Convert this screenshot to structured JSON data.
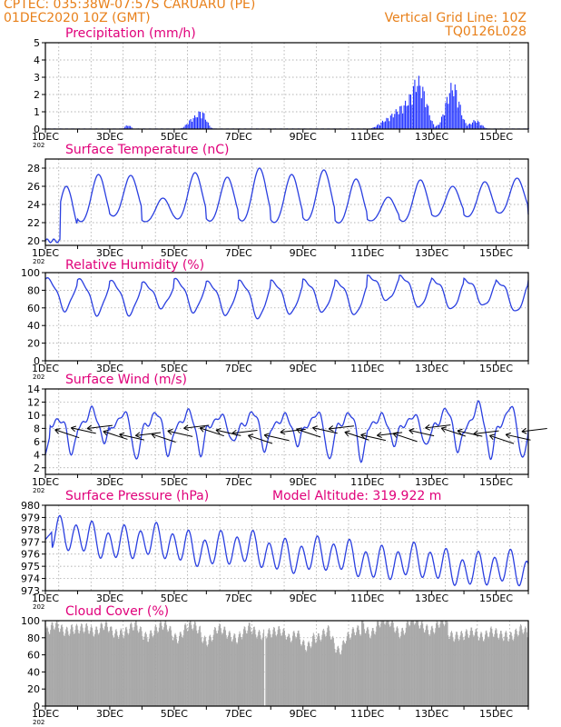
{
  "header": {
    "line1_left": "CPTEC:   035:38W-07:57S   CARUARU (PE)",
    "line2_left": "01DEC2020 10Z (GMT)",
    "line2_right": "Vertical Grid Line: 10Z",
    "line3_right": "TQ0126L028"
  },
  "colors": {
    "header": "#e8801a",
    "panel_title": "#e0007a",
    "series_line": "#2a3fe0",
    "precip_bars": "#1a2cff",
    "cloud_fill": "#a8a8a8",
    "wind_arrows": "#000000",
    "grid": "#9a9a9a"
  },
  "x_axis": {
    "start": "2020-12-01T00Z",
    "end": "2020-12-16T00Z",
    "labels": [
      "1DEC",
      "3DEC",
      "5DEC",
      "7DEC",
      "9DEC",
      "11DEC",
      "13DEC",
      "15DEC"
    ],
    "year_stub": "202"
  },
  "chart_data": [
    {
      "type": "bar",
      "title": "Precipitation (mm/h)",
      "ylim": [
        0,
        5
      ],
      "yticks": [
        0,
        1,
        2,
        3,
        4,
        5
      ],
      "grid": true,
      "events": [
        {
          "day": 2.55,
          "width": 0.2,
          "peak": 0.25
        },
        {
          "day": 4.55,
          "width": 0.35,
          "peak": 0.6
        },
        {
          "day": 4.85,
          "width": 0.3,
          "peak": 1.0
        },
        {
          "day": 10.45,
          "width": 0.4,
          "peak": 0.3
        },
        {
          "day": 10.85,
          "width": 0.5,
          "peak": 0.8
        },
        {
          "day": 11.25,
          "width": 0.5,
          "peak": 1.3
        },
        {
          "day": 11.55,
          "width": 0.35,
          "peak": 2.35
        },
        {
          "day": 11.8,
          "width": 0.3,
          "peak": 1.2
        },
        {
          "day": 12.55,
          "width": 0.4,
          "peak": 1.9
        },
        {
          "day": 12.75,
          "width": 0.35,
          "peak": 1.4
        },
        {
          "day": 13.35,
          "width": 0.35,
          "peak": 0.55
        },
        {
          "day": 15.9,
          "width": 0.2,
          "peak": 0.35
        }
      ]
    },
    {
      "type": "line",
      "title": "Surface Temperature (nC)",
      "ylim": [
        19.5,
        29
      ],
      "yticks": [
        20,
        22,
        24,
        26,
        28
      ],
      "grid": true,
      "base": 21.5,
      "day_phase": 0.65,
      "width": 0.22,
      "maxima": [
        26.0,
        27.3,
        27.2,
        24.7,
        27.5,
        27.0,
        28.0,
        27.3,
        27.8,
        26.8,
        24.8,
        26.7,
        26.0,
        26.5,
        26.9,
        26.7
      ],
      "minima": [
        19.8,
        21.5,
        22.2,
        21.8,
        21.8,
        21.6,
        21.5,
        21.4,
        21.6,
        21.4,
        21.9,
        21.6,
        22.3,
        22.2,
        22.6,
        22.2
      ]
    },
    {
      "type": "line",
      "title": "Relative Humidity (%)",
      "ylim": [
        0,
        100
      ],
      "yticks": [
        0,
        20,
        40,
        60,
        80,
        100
      ],
      "grid": true,
      "base": 92,
      "day_phase": 0.62,
      "width": 0.2,
      "minima": [
        57,
        52,
        52,
        60,
        55,
        52,
        48,
        53,
        55,
        52,
        68,
        60,
        58,
        62,
        55,
        56
      ],
      "maxima": [
        93,
        92,
        90,
        88,
        92,
        89,
        90,
        90,
        91,
        90,
        96,
        96,
        92,
        92,
        90,
        90
      ]
    },
    {
      "type": "line",
      "title": "Surface Wind (m/s)",
      "ylim": [
        1,
        14
      ],
      "yticks": [
        2,
        4,
        6,
        8,
        10,
        12,
        14
      ],
      "grid": true,
      "base": 8.5,
      "day_phase": 0.6,
      "maxima": [
        9.3,
        11.0,
        10.4,
        10.4,
        10.6,
        10.0,
        10.5,
        10.0,
        10.4,
        10.3,
        10.0,
        10.0,
        11.0,
        11.8,
        11.4,
        11.8
      ],
      "minima": [
        4.0,
        6.0,
        3.0,
        3.8,
        4.0,
        5.8,
        4.5,
        5.5,
        3.0,
        3.0,
        5.5,
        5.2,
        4.5,
        3.5,
        3.2,
        5.5
      ],
      "arrow_spacing_days": 0.5
    },
    {
      "type": "line",
      "title": "Surface Pressure (hPa)",
      "subtitle": "Model Altitude: 319.922 m",
      "ylim": [
        973,
        980
      ],
      "yticks": [
        973,
        974,
        975,
        976,
        977,
        978,
        979,
        980
      ],
      "grid": true,
      "trend_start": 977.5,
      "trend_end": 974.5,
      "semidiurnal_amp": 1.2
    },
    {
      "type": "area",
      "title": "Cloud Cover (%)",
      "ylim": [
        0,
        100
      ],
      "yticks": [
        0,
        20,
        40,
        60,
        80,
        100
      ],
      "grid": true,
      "segments": [
        {
          "days": [
            0.0,
            2.0
          ],
          "level": 92
        },
        {
          "days": [
            2.0,
            4.8
          ],
          "level": 90
        },
        {
          "days": [
            4.8,
            6.0
          ],
          "level": 86
        },
        {
          "days": [
            6.0,
            7.5
          ],
          "level": 88
        },
        {
          "days": [
            7.5,
            9.8
          ],
          "level": 84
        },
        {
          "days": [
            9.8,
            12.5
          ],
          "level": 96
        },
        {
          "days": [
            12.5,
            16.0
          ],
          "level": 86
        }
      ],
      "gap_day": 6.8
    }
  ]
}
